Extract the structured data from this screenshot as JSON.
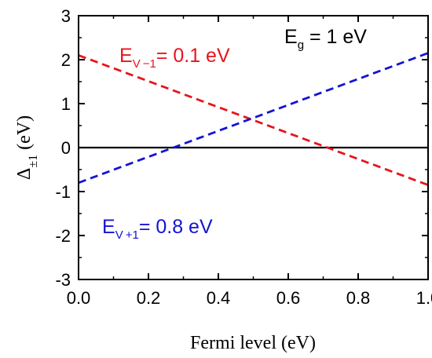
{
  "chart_data": {
    "type": "line",
    "xlabel": "Fermi level (eV)",
    "ylabel": {
      "main": "Δ",
      "sub": "±1",
      "rest": " (eV)"
    },
    "xlim": [
      0.0,
      1.0
    ],
    "ylim": [
      -3,
      3
    ],
    "xticks": [
      "0.0",
      "0.2",
      "0.4",
      "0.6",
      "0.8",
      "1.0"
    ],
    "yticks": [
      "-3",
      "-2",
      "-1",
      "0",
      "1",
      "2",
      "3"
    ],
    "grid": false,
    "reference_line": {
      "y": 0,
      "color": "#000000"
    },
    "series": [
      {
        "id": "minus1",
        "color": "#e8141b",
        "style": "dashed",
        "x": [
          0.0,
          1.0
        ],
        "y": [
          2.1,
          -0.85
        ]
      },
      {
        "id": "plus1",
        "color": "#1414d2",
        "style": "dashed",
        "x": [
          0.0,
          1.0
        ],
        "y": [
          -0.8,
          2.15
        ]
      }
    ],
    "annotations": [
      {
        "id": "eg",
        "color": "#000000",
        "main": "E",
        "sub": "g",
        "rest": " = 1 eV"
      },
      {
        "id": "ev-minus",
        "color": "#e8141b",
        "main": "E",
        "sub": "V −1",
        "rest": "= 0.1 eV"
      },
      {
        "id": "ev-plus",
        "color": "#1414d2",
        "main": "E",
        "sub": "V +1",
        "rest": "= 0.8 eV"
      }
    ]
  }
}
